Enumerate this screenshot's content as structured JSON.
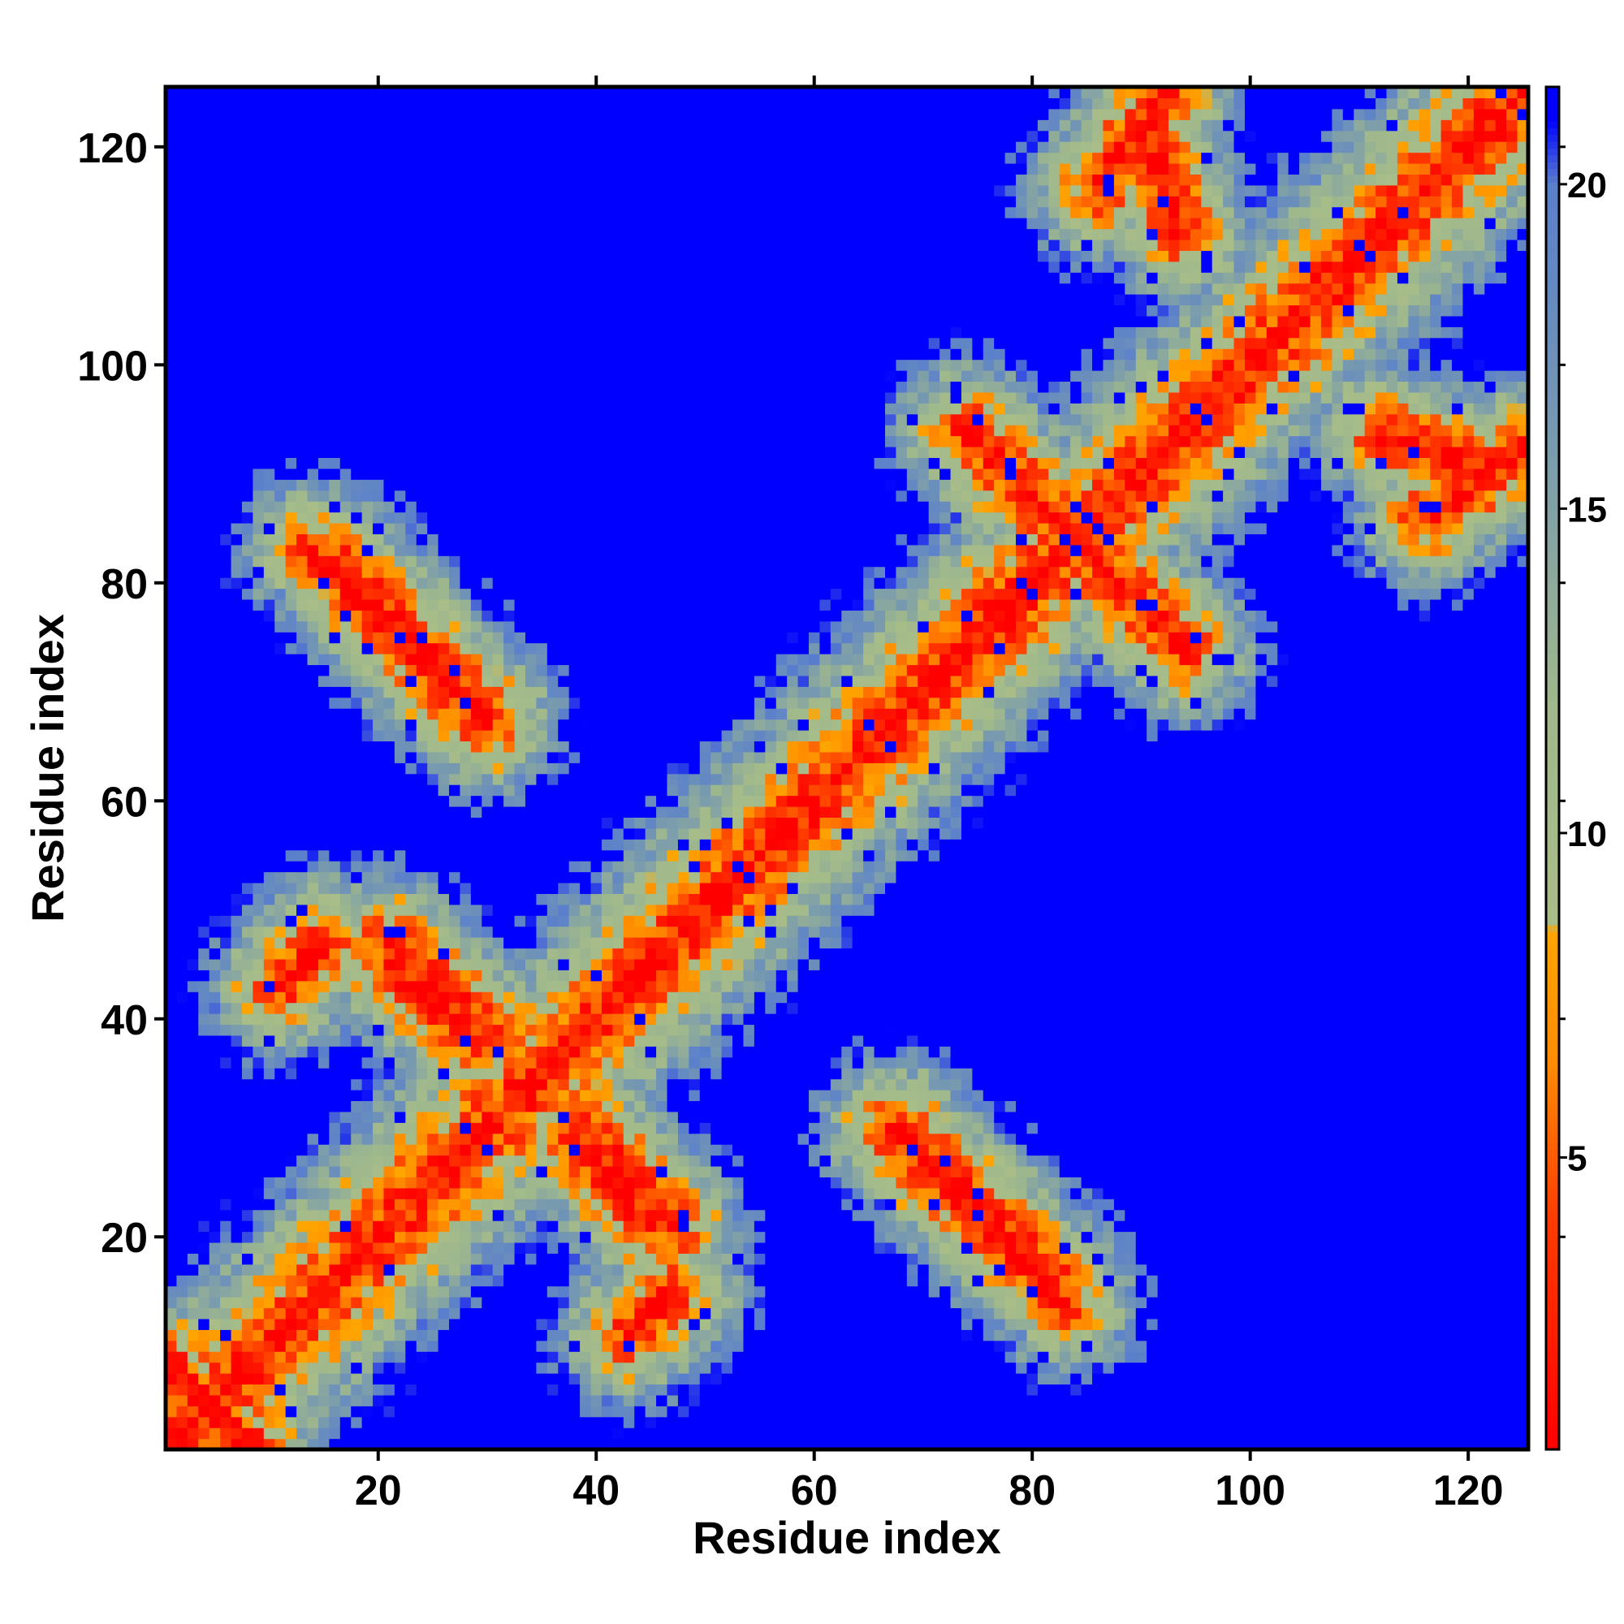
{
  "chart_data": {
    "type": "heatmap",
    "title": "",
    "xlabel": "Residue index",
    "ylabel": "Residue index",
    "n_residues": 125,
    "xlim": [
      1,
      125
    ],
    "ylim": [
      1,
      125
    ],
    "x_ticks": [
      20,
      40,
      60,
      80,
      100,
      120
    ],
    "y_ticks": [
      20,
      40,
      60,
      80,
      100,
      120
    ],
    "colorbar": {
      "label": "",
      "range": [
        0.5,
        21.5
      ],
      "ticks": [
        5,
        10,
        15,
        20
      ],
      "stops": [
        {
          "value": 0.5,
          "color": "#ff0000"
        },
        {
          "value": 4.0,
          "color": "#ff3a00"
        },
        {
          "value": 6.5,
          "color": "#ff8c00"
        },
        {
          "value": 8.5,
          "color": "#ffa500"
        },
        {
          "value": 8.6,
          "color": "#a9bd88"
        },
        {
          "value": 12.0,
          "color": "#9fb88c"
        },
        {
          "value": 17.0,
          "color": "#6f93b7"
        },
        {
          "value": 20.0,
          "color": "#5a7fcc"
        },
        {
          "value": 21.0,
          "color": "#0000ff"
        }
      ]
    },
    "cutoff_color": "#0000ff",
    "contact_segments": [
      {
        "a": [
          1,
          125
        ],
        "b": [
          1,
          125
        ],
        "note": "main diagonal"
      },
      {
        "a": [
          14,
          30
        ],
        "b": [
          83,
          67
        ],
        "note": "antiparallel"
      },
      {
        "a": [
          21,
          30
        ],
        "b": [
          47,
          39
        ],
        "note": "antiparallel"
      },
      {
        "a": [
          38,
          45
        ],
        "b": [
          29,
          21
        ],
        "note": "antiparallel"
      },
      {
        "a": [
          68,
          82
        ],
        "b": [
          30,
          16
        ],
        "note": "antiparallel"
      },
      {
        "a": [
          74,
          84
        ],
        "b": [
          94,
          84
        ],
        "note": "antiparallel"
      },
      {
        "a": [
          86,
          94
        ],
        "b": [
          82,
          74
        ],
        "note": "antiparallel"
      },
      {
        "a": [
          90,
          94
        ],
        "b": [
          122,
          112
        ],
        "note": "parallel"
      },
      {
        "a": [
          116,
          125
        ],
        "b": [
          86,
          92
        ],
        "note": "parallel"
      },
      {
        "a": [
          11,
          15
        ],
        "b": [
          43,
          47
        ],
        "note": "parallel"
      },
      {
        "a": [
          43,
          47
        ],
        "b": [
          11,
          15
        ],
        "note": "parallel"
      },
      {
        "a": [
          1,
          6
        ],
        "b": [
          8,
          3
        ],
        "note": "near-diagonal"
      }
    ]
  }
}
